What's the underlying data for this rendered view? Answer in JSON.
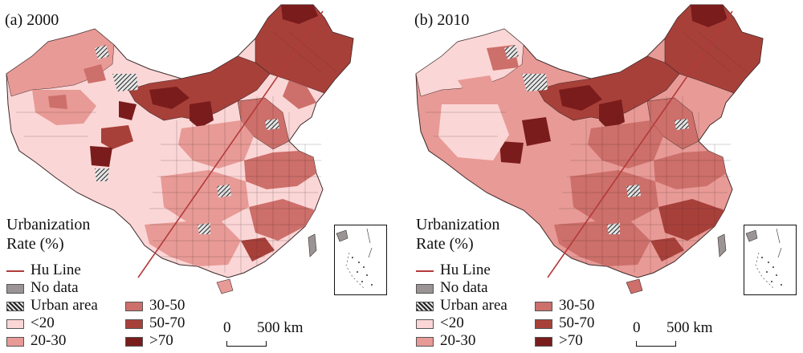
{
  "panels": [
    {
      "title": "(a) 2000"
    },
    {
      "title": "(b) 2010"
    }
  ],
  "legend": {
    "title_line1": "Urbanization",
    "title_line2": "Rate (%)",
    "hu_line": "Hu Line",
    "no_data": "No data",
    "urban_area": "Urban area",
    "classes": [
      "<20",
      "20-30",
      "30-50",
      "50-70",
      ">70"
    ]
  },
  "scale": {
    "zero": "0",
    "distance": "500 km"
  },
  "colors": {
    "lt20": "#fbd6d6",
    "c20_30": "#e89a96",
    "c30_50": "#cd6f6a",
    "c50_70": "#a8403a",
    "gt70": "#7a1c1c",
    "no_data": "#9a9494",
    "hu_line": "#b33a3a",
    "boundary": "#3d2a2a"
  }
}
